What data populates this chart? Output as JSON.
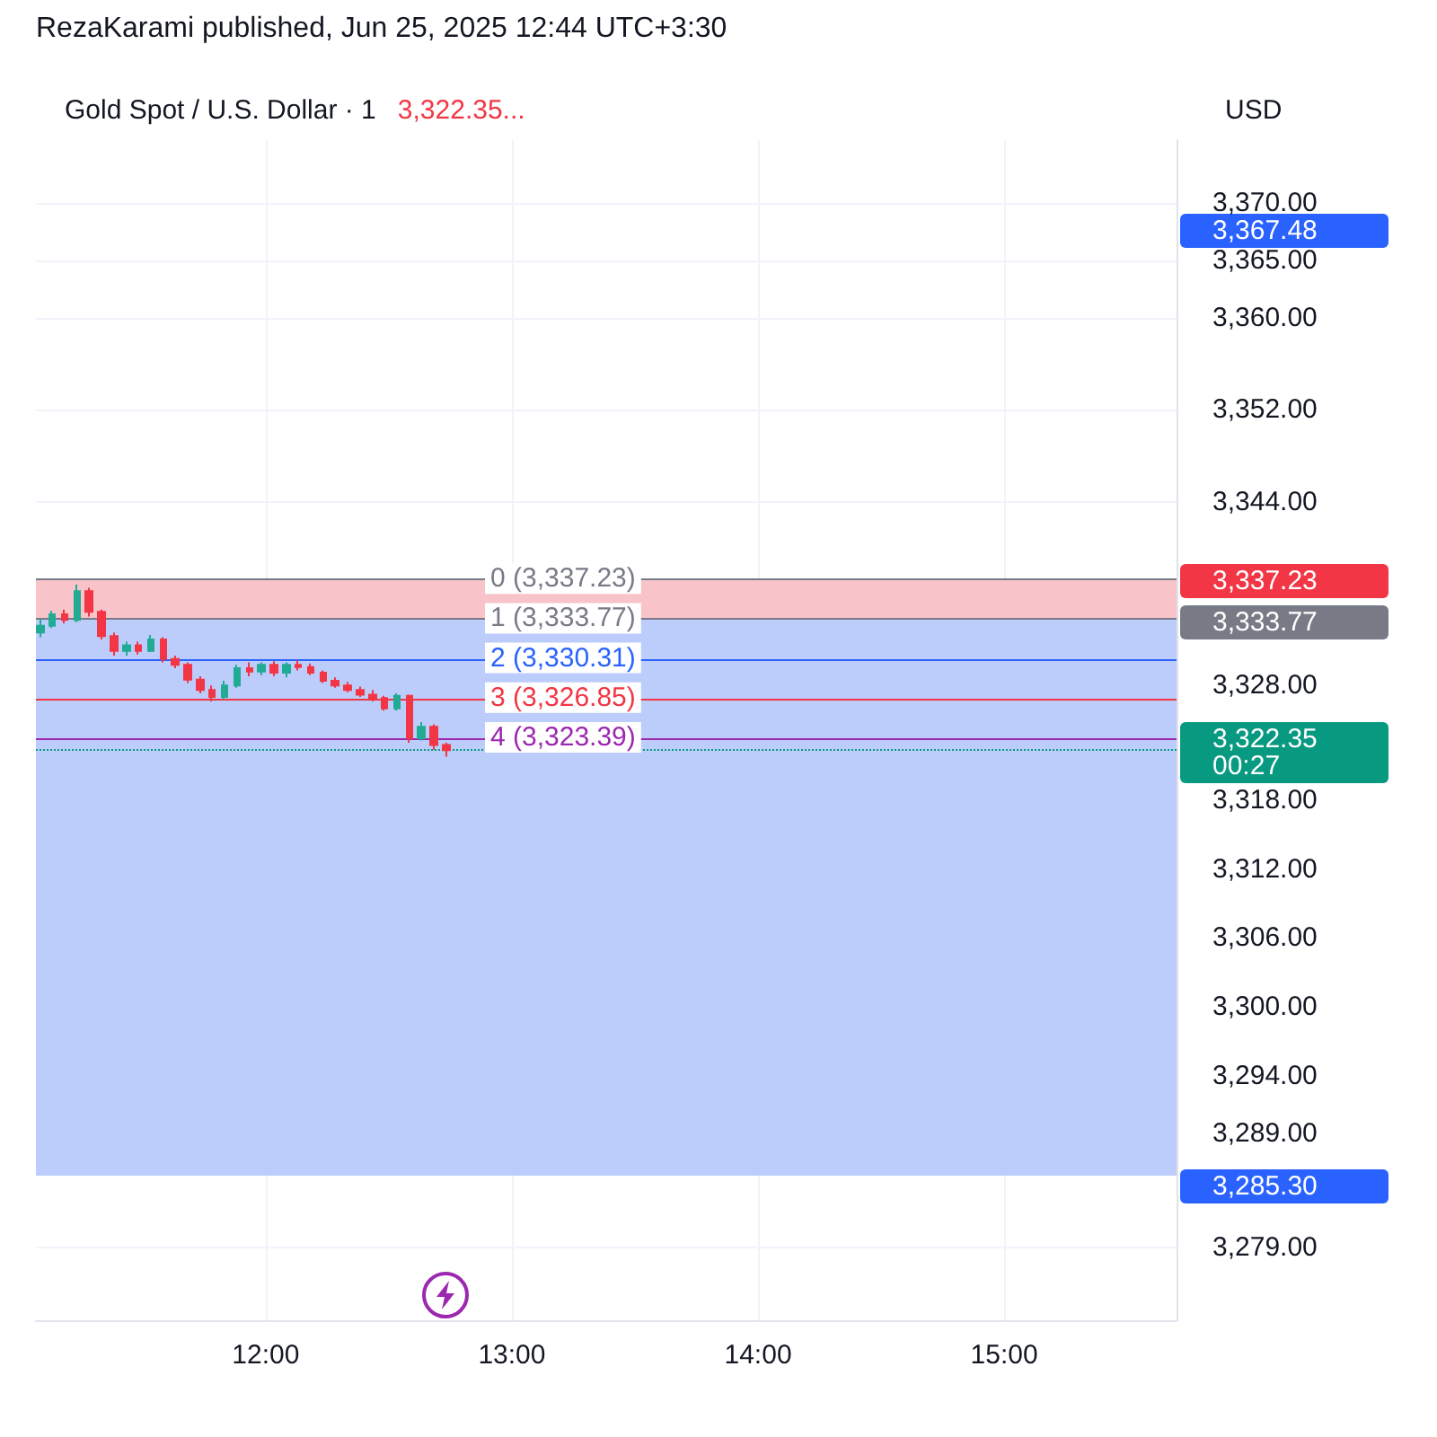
{
  "chart_data": {
    "type": "candlestick",
    "title": "RezaKarami published, Jun 25, 2025 12:44 UTC+3:30",
    "subtitle": "Gold Spot / U.S. Dollar · 1",
    "ylabel": "USD",
    "annotations": [
      "3,322.35...",
      "3,367.48",
      "3,337.23",
      "3,333.77",
      "3,322.35\n00:27",
      "3,285.30"
    ],
    "x": [
      "2025-06-25T11:05",
      "2025-06-25T11:08",
      "2025-06-25T11:11",
      "2025-06-25T11:14",
      "2025-06-25T11:17",
      "2025-06-25T11:20",
      "2025-06-25T11:23",
      "2025-06-25T11:26",
      "2025-06-25T11:29",
      "2025-06-25T11:32",
      "2025-06-25T11:35",
      "2025-06-25T11:38",
      "2025-06-25T11:41",
      "2025-06-25T11:44",
      "2025-06-25T11:47",
      "2025-06-25T11:50",
      "2025-06-25T11:53",
      "2025-06-25T11:56",
      "2025-06-25T11:59",
      "2025-06-25T12:02",
      "2025-06-25T12:05",
      "2025-06-25T12:08",
      "2025-06-25T12:11",
      "2025-06-25T12:14",
      "2025-06-25T12:17",
      "2025-06-25T12:20",
      "2025-06-25T12:23",
      "2025-06-25T12:26",
      "2025-06-25T12:29",
      "2025-06-25T12:32",
      "2025-06-25T12:35",
      "2025-06-25T12:38",
      "2025-06-25T12:41",
      "2025-06-25T12:44"
    ],
    "ohlc": [
      [
        3332.6,
        3333.8,
        3332.2,
        3333.2
      ],
      [
        3333.2,
        3334.5,
        3333.0,
        3334.2
      ],
      [
        3334.2,
        3334.6,
        3333.4,
        3333.7
      ],
      [
        3333.7,
        3336.8,
        3333.5,
        3336.2
      ],
      [
        3336.2,
        3336.5,
        3334.0,
        3334.4
      ],
      [
        3334.4,
        3334.6,
        3332.0,
        3332.3
      ],
      [
        3332.3,
        3332.6,
        3330.6,
        3331.0
      ],
      [
        3331.0,
        3331.8,
        3330.6,
        3331.5
      ],
      [
        3331.5,
        3331.8,
        3330.7,
        3331.0
      ],
      [
        3331.0,
        3332.4,
        3330.9,
        3332.0
      ],
      [
        3332.0,
        3332.2,
        3330.0,
        3330.3
      ],
      [
        3330.3,
        3330.6,
        3329.5,
        3329.8
      ],
      [
        3329.8,
        3330.0,
        3328.2,
        3328.5
      ],
      [
        3328.5,
        3328.8,
        3327.3,
        3327.6
      ],
      [
        3327.6,
        3328.0,
        3326.6,
        3327.0
      ],
      [
        3327.0,
        3328.4,
        3326.8,
        3328.0
      ],
      [
        3328.0,
        3329.8,
        3327.8,
        3329.5
      ],
      [
        3329.5,
        3330.0,
        3328.8,
        3329.2
      ],
      [
        3329.2,
        3330.0,
        3328.9,
        3329.8
      ],
      [
        3329.8,
        3330.1,
        3328.8,
        3329.1
      ],
      [
        3329.1,
        3330.0,
        3328.7,
        3329.8
      ],
      [
        3329.8,
        3330.2,
        3329.3,
        3329.6
      ],
      [
        3329.6,
        3329.9,
        3328.9,
        3329.1
      ],
      [
        3329.1,
        3329.3,
        3328.2,
        3328.4
      ],
      [
        3328.4,
        3328.7,
        3327.8,
        3328.0
      ],
      [
        3328.0,
        3328.3,
        3327.4,
        3327.6
      ],
      [
        3327.6,
        3327.9,
        3327.0,
        3327.2
      ],
      [
        3327.2,
        3327.6,
        3326.6,
        3326.9
      ],
      [
        3326.9,
        3327.1,
        3325.8,
        3326.0
      ],
      [
        3326.0,
        3327.3,
        3325.8,
        3327.1
      ],
      [
        3327.1,
        3327.2,
        3323.0,
        3323.4
      ],
      [
        3323.4,
        3324.8,
        3323.2,
        3324.4
      ],
      [
        3324.4,
        3324.6,
        3322.4,
        3322.8
      ],
      [
        3322.8,
        3323.0,
        3321.8,
        3322.35
      ]
    ],
    "colors": [
      "#22ab94",
      "#22ab94",
      "#f23645",
      "#22ab94",
      "#f23645",
      "#f23645",
      "#f23645",
      "#22ab94",
      "#f23645",
      "#22ab94",
      "#f23645",
      "#f23645",
      "#f23645",
      "#f23645",
      "#f23645",
      "#22ab94",
      "#22ab94",
      "#f23645",
      "#22ab94",
      "#f23645",
      "#22ab94",
      "#f23645",
      "#f23645",
      "#f23645",
      "#f23645",
      "#f23645",
      "#f23645",
      "#f23645",
      "#f23645",
      "#22ab94",
      "#f23645",
      "#22ab94",
      "#f23645",
      "#f23645"
    ],
    "xlim": [
      "2025-06-25T11:04",
      "2025-06-25T15:42"
    ],
    "xticks": [
      {
        "value": "2025-06-25T12:00",
        "label": "12:00"
      },
      {
        "value": "2025-06-25T13:00",
        "label": "13:00"
      },
      {
        "value": "2025-06-25T14:00",
        "label": "14:00"
      },
      {
        "value": "2025-06-25T15:00",
        "label": "15:00"
      }
    ],
    "ylim": [
      3272.7,
      3375.5
    ],
    "yticks": [
      {
        "value": 3279,
        "label": "3,279.00"
      },
      {
        "value": 3289,
        "label": "3,289.00"
      },
      {
        "value": 3294,
        "label": "3,294.00"
      },
      {
        "value": 3300,
        "label": "3,300.00"
      },
      {
        "value": 3306,
        "label": "3,306.00"
      },
      {
        "value": 3312,
        "label": "3,312.00"
      },
      {
        "value": 3318,
        "label": "3,318.00"
      },
      {
        "value": 3328,
        "label": "3,328.00"
      },
      {
        "value": 3344,
        "label": "3,344.00"
      },
      {
        "value": 3352,
        "label": "3,352.00"
      },
      {
        "value": 3360,
        "label": "3,360.00"
      },
      {
        "value": 3365,
        "label": "3,365.00"
      },
      {
        "value": 3370,
        "label": "3,370.00"
      }
    ],
    "ref_lines": [
      {
        "axis": "y",
        "value": 3337.23,
        "label": "0 (3,337.23)",
        "color": "#787b86"
      },
      {
        "axis": "y",
        "value": 3333.77,
        "label": "1 (3,333.77)",
        "color": "#787b86"
      },
      {
        "axis": "y",
        "value": 3330.31,
        "label": "2 (3,330.31)",
        "color": "#2962ff"
      },
      {
        "axis": "y",
        "value": 3326.85,
        "label": "3 (3,326.85)",
        "color": "#f23645"
      },
      {
        "axis": "y",
        "value": 3323.39,
        "label": "4 (3,323.39)",
        "color": "#9c27b0"
      },
      {
        "axis": "y",
        "value": 3322.35,
        "label": null,
        "color": "#089981",
        "line_style": "dotted"
      }
    ],
    "bands": [
      {
        "axis": "y",
        "from": 3333.77,
        "to": 3337.23,
        "color": "#f8c4ca"
      },
      {
        "axis": "y",
        "from": 3285.3,
        "to": 3333.77,
        "color": "#bccdfb"
      }
    ],
    "grid": true
  }
}
